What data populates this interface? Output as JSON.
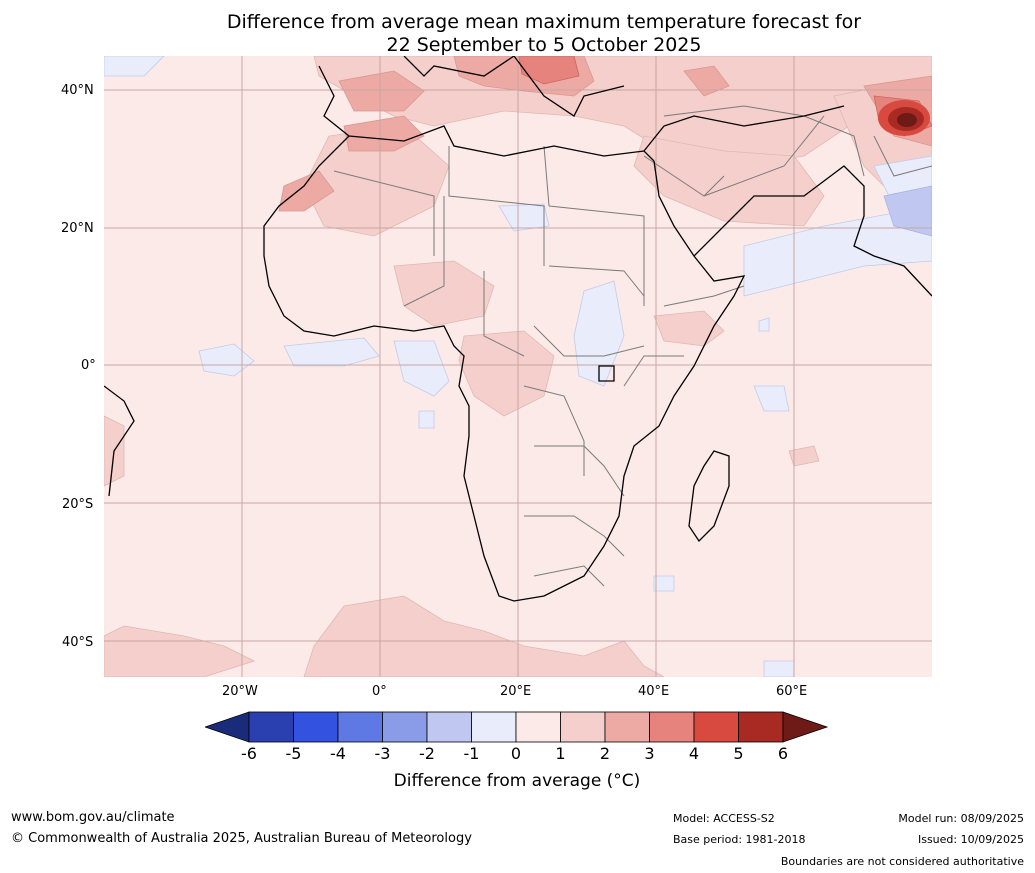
{
  "title_line1": "Difference from average mean maximum temperature forecast for",
  "title_line2": "22 September to 5 October 2025",
  "axis": {
    "lat_labels": [
      "40°N",
      "20°N",
      "0°",
      "20°S",
      "40°S"
    ],
    "lon_labels": [
      "20°W",
      "0°",
      "20°E",
      "40°E",
      "60°E"
    ]
  },
  "colorbar": {
    "ticks": [
      "-6",
      "-5",
      "-4",
      "-3",
      "-2",
      "-1",
      "0",
      "1",
      "2",
      "3",
      "4",
      "5",
      "6"
    ],
    "colors": [
      "#1a2b7a",
      "#2a3fb0",
      "#3352df",
      "#5e78e4",
      "#8a9ce8",
      "#c0c8f2",
      "#e8ecfb",
      "#fbeae8",
      "#f5cfcb",
      "#eda9a3",
      "#e6837c",
      "#d84a40",
      "#a82a22",
      "#6e1a16"
    ],
    "label": "Difference from average (°C)"
  },
  "footer": {
    "url": "www.bom.gov.au/climate",
    "copyright": "© Commonwealth of Australia 2025, Australian Bureau of Meteorology",
    "model": "Model: ACCESS-S2",
    "base_period": "Base period: 1981-2018",
    "model_run": "Model run: 08/09/2025",
    "issued": "Issued: 10/09/2025",
    "disclaimer": "Boundaries are not considered authoritative"
  }
}
